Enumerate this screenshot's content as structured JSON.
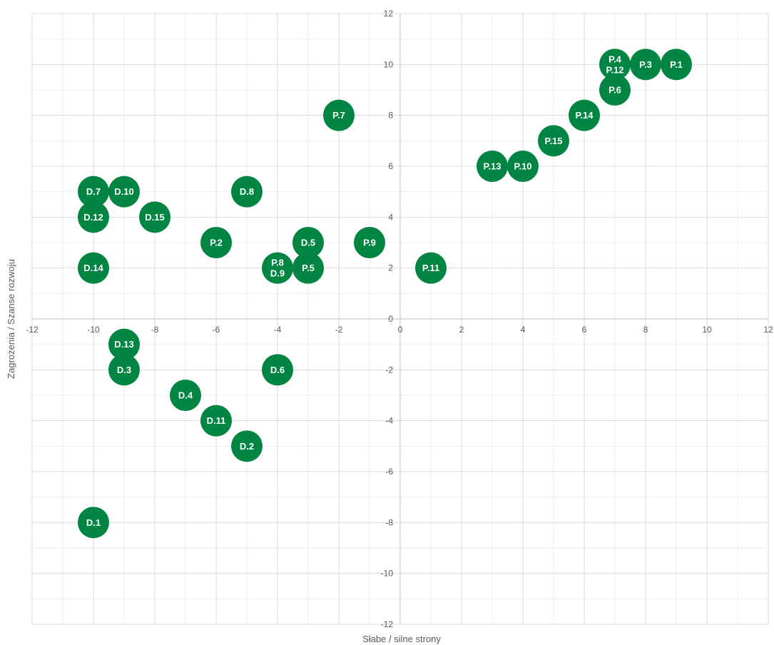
{
  "chart_data": {
    "type": "scatter",
    "title": "",
    "xlabel": "Słabe / silne strony",
    "ylabel": "Zagrożenia / Szanse rozwoju",
    "xlim": [
      -12,
      12
    ],
    "ylim": [
      -12,
      12
    ],
    "x_ticks": [
      -12,
      -10,
      -8,
      -6,
      -4,
      -2,
      0,
      2,
      4,
      6,
      8,
      10,
      12
    ],
    "y_ticks": [
      -12,
      -10,
      -8,
      -6,
      -4,
      -2,
      0,
      2,
      4,
      6,
      8,
      10,
      12
    ],
    "grid": true,
    "minor_grid": true,
    "legend": "none",
    "marker_color": "#008542",
    "label_color": "#ffffff",
    "points": [
      {
        "label": "P.1",
        "x": 9,
        "y": 10
      },
      {
        "label": "P.3",
        "x": 8,
        "y": 10
      },
      {
        "label": "P.4",
        "x": 7,
        "y": 10
      },
      {
        "label": "P.12",
        "x": 7,
        "y": 10
      },
      {
        "label": "P.6",
        "x": 7,
        "y": 9
      },
      {
        "label": "P.14",
        "x": 6,
        "y": 8
      },
      {
        "label": "P.15",
        "x": 5,
        "y": 7
      },
      {
        "label": "P.13",
        "x": 3,
        "y": 6
      },
      {
        "label": "P.10",
        "x": 4,
        "y": 6
      },
      {
        "label": "P.7",
        "x": -2,
        "y": 8
      },
      {
        "label": "P.9",
        "x": -1,
        "y": 3
      },
      {
        "label": "P.11",
        "x": 1,
        "y": 2
      },
      {
        "label": "P.2",
        "x": -6,
        "y": 3
      },
      {
        "label": "P.5",
        "x": -3,
        "y": 2
      },
      {
        "label": "P.8",
        "x": -4,
        "y": 2
      },
      {
        "label": "D.9",
        "x": -4,
        "y": 2
      },
      {
        "label": "D.5",
        "x": -3,
        "y": 3
      },
      {
        "label": "D.8",
        "x": -5,
        "y": 5
      },
      {
        "label": "D.7",
        "x": -10,
        "y": 5
      },
      {
        "label": "D.10",
        "x": -9,
        "y": 5
      },
      {
        "label": "D.12",
        "x": -10,
        "y": 4
      },
      {
        "label": "D.15",
        "x": -8,
        "y": 4
      },
      {
        "label": "D.14",
        "x": -10,
        "y": 2
      },
      {
        "label": "D.13",
        "x": -9,
        "y": -1
      },
      {
        "label": "D.3",
        "x": -9,
        "y": -2
      },
      {
        "label": "D.6",
        "x": -4,
        "y": -2
      },
      {
        "label": "D.4",
        "x": -7,
        "y": -3
      },
      {
        "label": "D.11",
        "x": -6,
        "y": -4
      },
      {
        "label": "D.2",
        "x": -5,
        "y": -5
      },
      {
        "label": "D.1",
        "x": -10,
        "y": -8
      }
    ]
  }
}
